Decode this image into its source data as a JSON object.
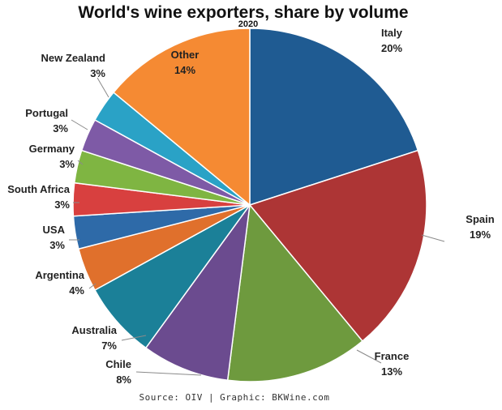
{
  "chart_data": {
    "type": "pie",
    "title": "World's wine exporters, share by volume",
    "subtitle": "2020",
    "source": "Source: OIV | Graphic: BKWine.com",
    "slices": [
      {
        "label": "Italy",
        "value_label": "20%",
        "value": 20,
        "color": "#1f5b92"
      },
      {
        "label": "Spain",
        "value_label": "19%",
        "value": 19,
        "color": "#ad3535"
      },
      {
        "label": "France",
        "value_label": "13%",
        "value": 13,
        "color": "#6e9a3e"
      },
      {
        "label": "Chile",
        "value_label": "8%",
        "value": 8,
        "color": "#6b4b8f"
      },
      {
        "label": "Australia",
        "value_label": "7%",
        "value": 7,
        "color": "#1b8098"
      },
      {
        "label": "Argentina",
        "value_label": "4%",
        "value": 4,
        "color": "#e0702c"
      },
      {
        "label": "USA",
        "value_label": "3%",
        "value": 3,
        "color": "#2e6aa8"
      },
      {
        "label": "South Africa",
        "value_label": "3%",
        "value": 3,
        "color": "#d8403f"
      },
      {
        "label": "Germany",
        "value_label": "3%",
        "value": 3,
        "color": "#7fb542"
      },
      {
        "label": "Portugal",
        "value_label": "3%",
        "value": 3,
        "color": "#7e5aa6"
      },
      {
        "label": "New Zealand",
        "value_label": "3%",
        "value": 3,
        "color": "#2aa2c6"
      },
      {
        "label": "Other",
        "value_label": "14%",
        "value": 14,
        "color": "#f58a33"
      }
    ]
  }
}
